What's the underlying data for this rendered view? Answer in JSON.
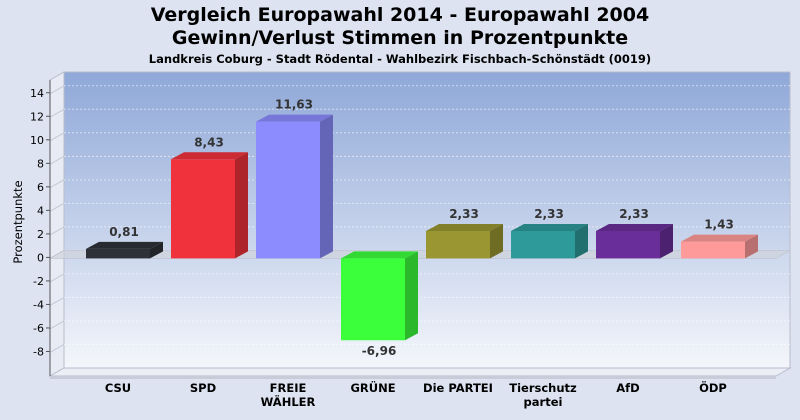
{
  "chart_data": {
    "type": "bar",
    "title": "Vergleich Europawahl 2014 - Europawahl 2004",
    "subtitle": "Gewinn/Verlust Stimmen in Prozentpunkte",
    "caption": "Landkreis Coburg - Stadt Rödental - Wahlbezirk Fischbach-Schönstädt (0019)",
    "xlabel": "",
    "ylabel": "Prozentpunkte",
    "ylim": [
      -10,
      15
    ],
    "yticks": [
      14,
      12,
      10,
      8,
      6,
      4,
      2,
      0,
      -2,
      -4,
      -6,
      -8
    ],
    "categories": [
      {
        "lines": [
          "CSU"
        ]
      },
      {
        "lines": [
          "SPD"
        ]
      },
      {
        "lines": [
          "FREIE",
          "WÄHLER"
        ]
      },
      {
        "lines": [
          "GRÜNE"
        ]
      },
      {
        "lines": [
          "Die PARTEI"
        ]
      },
      {
        "lines": [
          "Tierschutz",
          "partei"
        ]
      },
      {
        "lines": [
          "AfD"
        ]
      },
      {
        "lines": [
          "ÖDP"
        ]
      }
    ],
    "values": [
      0.81,
      8.43,
      11.63,
      -6.96,
      2.33,
      2.33,
      2.33,
      1.43
    ],
    "value_labels": [
      "0,81",
      "8,43",
      "11,63",
      "-6,96",
      "2,33",
      "2,33",
      "2,33",
      "1,43"
    ],
    "colors": [
      "#2e3138",
      "#f0323c",
      "#8c8cff",
      "#3cff3c",
      "#9a9632",
      "#2e9a9a",
      "#6a2e9a",
      "#ff9a9a"
    ]
  }
}
